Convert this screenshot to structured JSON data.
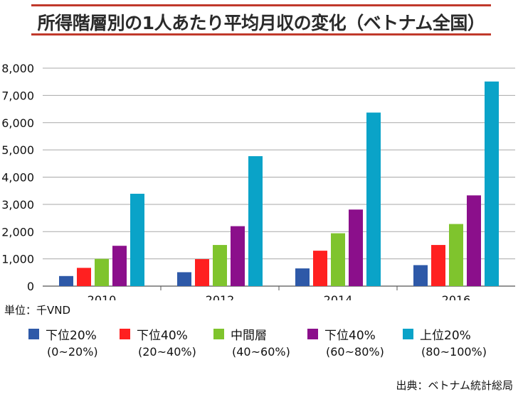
{
  "chart_data": {
    "type": "bar",
    "title": "所得階層別の1人あたり平均月収の変化（ベトナム全国）",
    "unit_label": "単位：千VND",
    "source": "出典：ベトナム統計総局",
    "categories": [
      "2010",
      "2012",
      "2014",
      "2016"
    ],
    "ylim": [
      0,
      8000
    ],
    "yticks": [
      "0",
      "1,000",
      "2,000",
      "3,000",
      "4,000",
      "5,000",
      "6,000",
      "7,000",
      "8,000"
    ],
    "grid": true,
    "legend_position": "bottom",
    "series": [
      {
        "name": "下位20%",
        "range": "(0~20%)",
        "color": "#2e59a8",
        "values": [
          370,
          510,
          650,
          770
        ]
      },
      {
        "name": "下位40%",
        "range": "(20~40%)",
        "color": "#ff2020",
        "values": [
          670,
          990,
          1300,
          1510
        ]
      },
      {
        "name": "中間層",
        "range": "(40~60%)",
        "color": "#7fc42d",
        "values": [
          1000,
          1510,
          1940,
          2280
        ]
      },
      {
        "name": "下位40%",
        "range": "(60~80%)",
        "color": "#8b0f8b",
        "values": [
          1480,
          2200,
          2810,
          3330
        ]
      },
      {
        "name": "上位20%",
        "range": "(80~100%)",
        "color": "#0aa3c8",
        "values": [
          3390,
          4770,
          6370,
          7510
        ]
      }
    ]
  }
}
